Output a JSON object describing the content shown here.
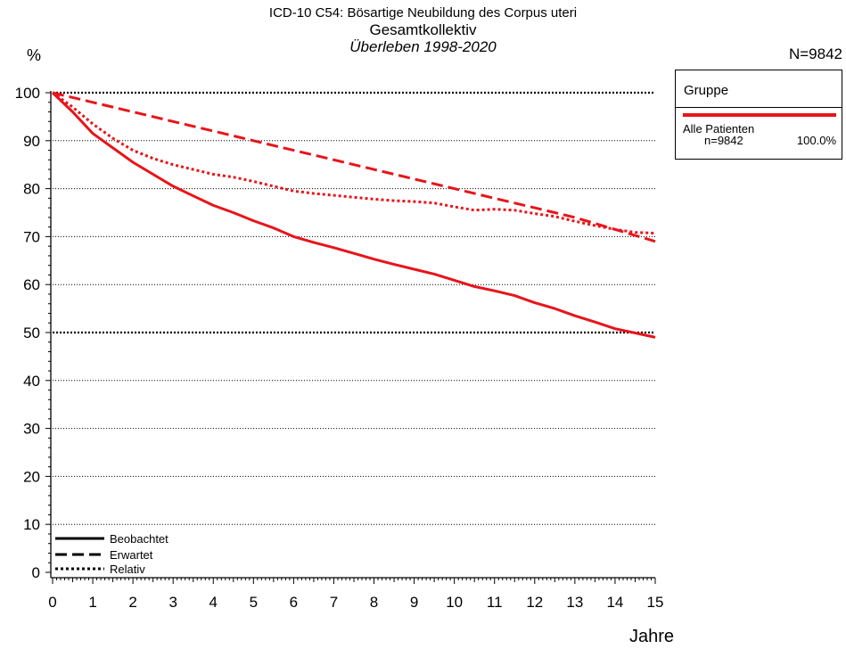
{
  "chart_data": {
    "type": "line",
    "title": "ICD-10 C54: Bösartige Neubildung des Corpus uteri",
    "subtitle": "Gesamtkollektiv",
    "subtitle2": "Überleben 1998-2020",
    "ylabel": "%",
    "xlabel": "Jahre",
    "n_label": "N=9842",
    "xlim": [
      0,
      15
    ],
    "ylim": [
      0,
      100
    ],
    "x_ticks": [
      "0",
      "1",
      "2",
      "3",
      "4",
      "5",
      "6",
      "7",
      "8",
      "9",
      "10",
      "11",
      "12",
      "13",
      "14",
      "15"
    ],
    "y_ticks": [
      "0",
      "10",
      "20",
      "30",
      "40",
      "50",
      "60",
      "70",
      "80",
      "90",
      "100"
    ],
    "grid": "horizontal dotted at each 10%, heavier at 50 and 100",
    "color": "#e8141a",
    "legend": {
      "header": "Gruppe",
      "group_name": "Alle Patienten",
      "group_n": "n=9842",
      "group_pct": "100.0%"
    },
    "line_key": [
      {
        "label": "Beobachtet",
        "style": "solid"
      },
      {
        "label": "Erwartet",
        "style": "dashed"
      },
      {
        "label": "Relativ",
        "style": "dotted"
      }
    ],
    "series": [
      {
        "name": "Beobachtet",
        "style": "solid",
        "x": [
          0,
          0.5,
          1,
          1.5,
          2,
          2.5,
          3,
          3.5,
          4,
          4.5,
          5,
          5.5,
          6,
          6.5,
          7,
          7.5,
          8,
          8.5,
          9,
          9.5,
          10,
          10.5,
          11,
          11.5,
          12,
          12.5,
          13,
          13.5,
          14,
          14.5,
          15
        ],
        "y": [
          100,
          96,
          91.5,
          88.5,
          85.5,
          83,
          80.5,
          78.5,
          76.5,
          75,
          73.3,
          71.8,
          70,
          68.8,
          67.7,
          66.5,
          65.3,
          64.2,
          63.2,
          62.2,
          60.9,
          59.6,
          58.7,
          57.7,
          56.2,
          55,
          53.5,
          52.2,
          50.8,
          49.9,
          49
        ]
      },
      {
        "name": "Erwartet",
        "style": "dashed",
        "x": [
          0,
          1,
          2,
          3,
          4,
          5,
          6,
          7,
          8,
          9,
          10,
          11,
          12,
          13,
          14,
          15
        ],
        "y": [
          100,
          98,
          96,
          94,
          92,
          90,
          88,
          86,
          84,
          82,
          80,
          78,
          76,
          74,
          71.5,
          69
        ]
      },
      {
        "name": "Relativ",
        "style": "dotted",
        "x": [
          0,
          0.5,
          1,
          1.5,
          2,
          2.5,
          3,
          3.5,
          4,
          4.5,
          5,
          5.5,
          6,
          6.5,
          7,
          7.5,
          8,
          8.5,
          9,
          9.5,
          10,
          10.5,
          11,
          11.5,
          12,
          12.5,
          13,
          13.5,
          14,
          14.5,
          15
        ],
        "y": [
          100,
          97,
          93.5,
          90.5,
          88,
          86.3,
          85,
          84,
          83,
          82.4,
          81.5,
          80.5,
          79.5,
          79,
          78.6,
          78.2,
          77.8,
          77.5,
          77.3,
          77,
          76.2,
          75.5,
          75.7,
          75.5,
          74.8,
          74.2,
          73.2,
          72.3,
          71.5,
          70.9,
          70.7
        ]
      }
    ]
  }
}
